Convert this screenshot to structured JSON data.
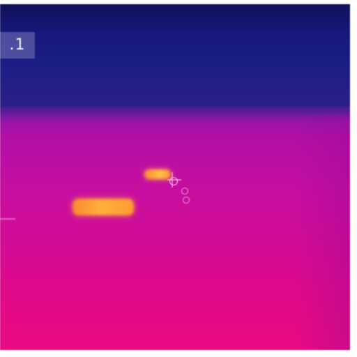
{
  "thermal_image": {
    "badge_text": ".1",
    "palette": {
      "background_top": "#11125a",
      "background_bottom": "#e90a82",
      "hotspot_color": "#ffb03a"
    },
    "icons": [
      "crosshair-icon"
    ]
  }
}
